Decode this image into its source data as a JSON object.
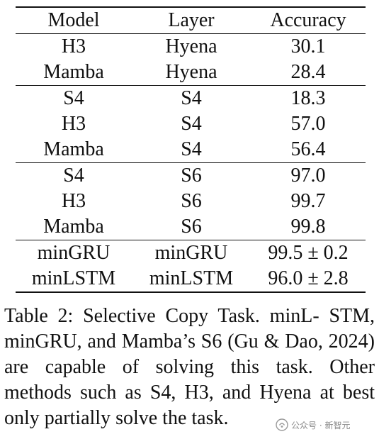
{
  "table": {
    "headers": [
      "Model",
      "Layer",
      "Accuracy"
    ],
    "groups": [
      {
        "rows": [
          [
            "H3",
            "Hyena",
            "30.1"
          ],
          [
            "Mamba",
            "Hyena",
            "28.4"
          ]
        ]
      },
      {
        "rows": [
          [
            "S4",
            "S4",
            "18.3"
          ],
          [
            "H3",
            "S4",
            "57.0"
          ],
          [
            "Mamba",
            "S4",
            "56.4"
          ]
        ]
      },
      {
        "rows": [
          [
            "S4",
            "S6",
            "97.0"
          ],
          [
            "H3",
            "S6",
            "99.7"
          ],
          [
            "Mamba",
            "S6",
            "99.8"
          ]
        ]
      },
      {
        "rows": [
          [
            "minGRU",
            "minGRU",
            "99.5 ± 0.2"
          ],
          [
            "minLSTM",
            "minLSTM",
            "96.0 ± 2.8"
          ]
        ]
      }
    ]
  },
  "caption": {
    "lines": [
      "Table 2: Selective Copy Task. minL-",
      "STM, minGRU, and Mamba’s S6 (Gu &",
      "Dao, 2024) are capable of solving this task.",
      "Other methods such as S4, H3, and Hyena",
      "at best only partially solve the task."
    ]
  },
  "watermark": {
    "icon": "wechat-official-account-icon",
    "text": "公众号 · 新智元"
  }
}
